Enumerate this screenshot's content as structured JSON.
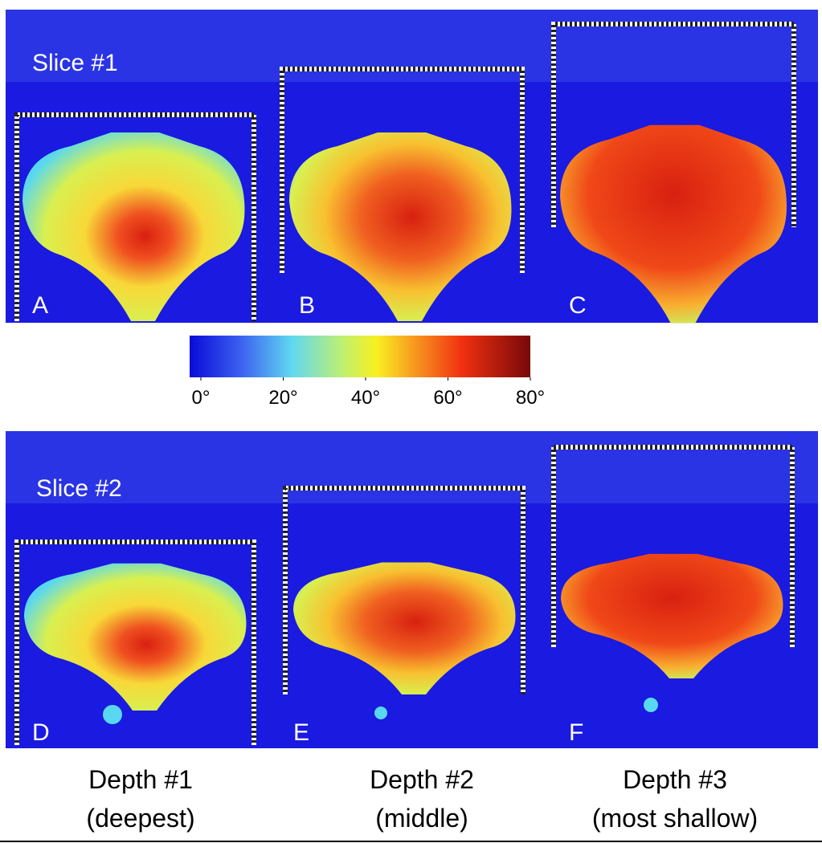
{
  "panels": [
    {
      "title": "Slice #1",
      "letters": [
        "A",
        "B",
        "C"
      ]
    },
    {
      "title": "Slice #2",
      "letters": [
        "D",
        "E",
        "F"
      ]
    }
  ],
  "colorbar": {
    "range": [
      0,
      80
    ],
    "ticks": [
      {
        "value": 0,
        "label": "0°"
      },
      {
        "value": 20,
        "label": "20°"
      },
      {
        "value": 40,
        "label": "40°"
      },
      {
        "value": 60,
        "label": "60°"
      },
      {
        "value": 80,
        "label": "80°"
      }
    ]
  },
  "depths": [
    {
      "label": "Depth #1",
      "note": "(deepest)"
    },
    {
      "label": "Depth #2",
      "note": "(middle)"
    },
    {
      "label": "Depth #3",
      "note": "(most shallow)"
    }
  ]
}
